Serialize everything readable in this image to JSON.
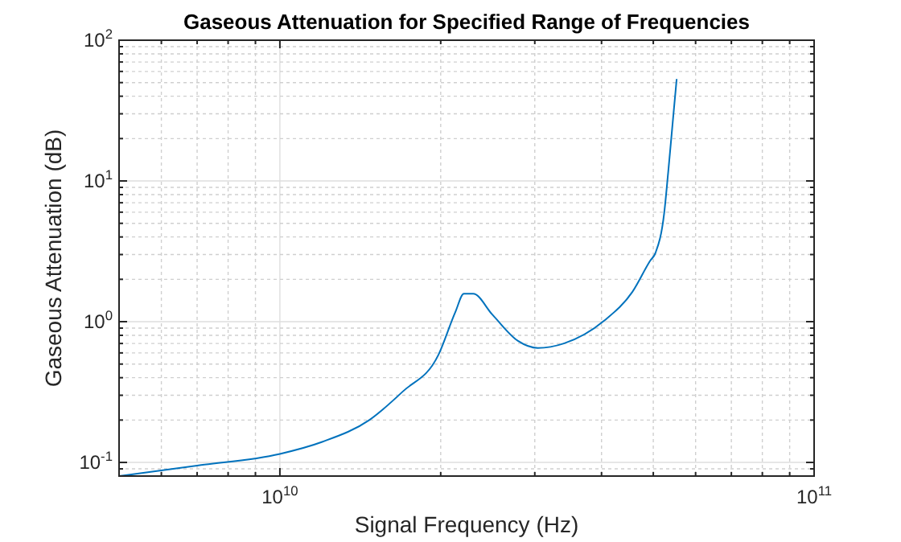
{
  "chart_data": {
    "type": "line",
    "title": "Gaseous Attenuation for Specified Range of Frequencies",
    "xlabel": "Signal Frequency (Hz)",
    "ylabel": "Gaseous Attenuation (dB)",
    "log": "xy",
    "grid": true,
    "marker": "none",
    "line_style": "solid",
    "xlim": [
      5000000000,
      100000000000
    ],
    "ylim": [
      0.08,
      100
    ],
    "xticks": [
      {
        "value": 5000000000,
        "label": null
      },
      {
        "value": 6000000000,
        "label": null
      },
      {
        "value": 7000000000,
        "label": null
      },
      {
        "value": 8000000000,
        "label": null
      },
      {
        "value": 9000000000,
        "label": null
      },
      {
        "value": 10000000000,
        "label": "10$^{10}$"
      },
      {
        "value": 20000000000,
        "label": null
      },
      {
        "value": 30000000000,
        "label": null
      },
      {
        "value": 40000000000,
        "label": null
      },
      {
        "value": 50000000000,
        "label": null
      },
      {
        "value": 60000000000,
        "label": null
      },
      {
        "value": 70000000000,
        "label": null
      },
      {
        "value": 80000000000,
        "label": null
      },
      {
        "value": 90000000000,
        "label": null
      },
      {
        "value": 100000000000,
        "label": "10$^{11}$"
      }
    ],
    "yticks": [
      {
        "value": 0.08,
        "label": null
      },
      {
        "value": 0.09,
        "label": null
      },
      {
        "value": 0.1,
        "label": "10$^{-1}$"
      },
      {
        "value": 0.2,
        "label": null
      },
      {
        "value": 0.3,
        "label": null
      },
      {
        "value": 0.4,
        "label": null
      },
      {
        "value": 0.5,
        "label": null
      },
      {
        "value": 0.6,
        "label": null
      },
      {
        "value": 0.7,
        "label": null
      },
      {
        "value": 0.8,
        "label": null
      },
      {
        "value": 0.9,
        "label": null
      },
      {
        "value": 1,
        "label": "10$^{0}$"
      },
      {
        "value": 2,
        "label": null
      },
      {
        "value": 3,
        "label": null
      },
      {
        "value": 4,
        "label": null
      },
      {
        "value": 5,
        "label": null
      },
      {
        "value": 6,
        "label": null
      },
      {
        "value": 7,
        "label": null
      },
      {
        "value": 8,
        "label": null
      },
      {
        "value": 9,
        "label": null
      },
      {
        "value": 10,
        "label": "10$^{1}$"
      },
      {
        "value": 20,
        "label": null
      },
      {
        "value": 30,
        "label": null
      },
      {
        "value": 40,
        "label": null
      },
      {
        "value": 50,
        "label": null
      },
      {
        "value": 60,
        "label": null
      },
      {
        "value": 70,
        "label": null
      },
      {
        "value": 80,
        "label": null
      },
      {
        "value": 90,
        "label": null
      },
      {
        "value": 100,
        "label": "10$^{2}$"
      }
    ],
    "x": [
      5000000000,
      7000000000,
      10000000000,
      12000000000,
      14700000000,
      17000000000,
      19800000000,
      21300000000,
      22100000000,
      23000000000,
      25000000000,
      27900000000,
      30400000000,
      34000000000,
      40500000000,
      45700000000,
      49300000000,
      50500000000,
      52400000000,
      53300000000,
      54500000000,
      55300000000
    ],
    "series": [
      {
        "color": "#0072bd",
        "values": [
          0.08,
          0.095,
          0.115,
          0.14,
          0.2,
          0.32,
          0.58,
          1.17,
          1.58,
          1.58,
          1.12,
          0.73,
          0.65,
          0.7,
          1.02,
          1.63,
          2.7,
          3.1,
          5.9,
          11.4,
          29,
          53
        ]
      }
    ]
  }
}
